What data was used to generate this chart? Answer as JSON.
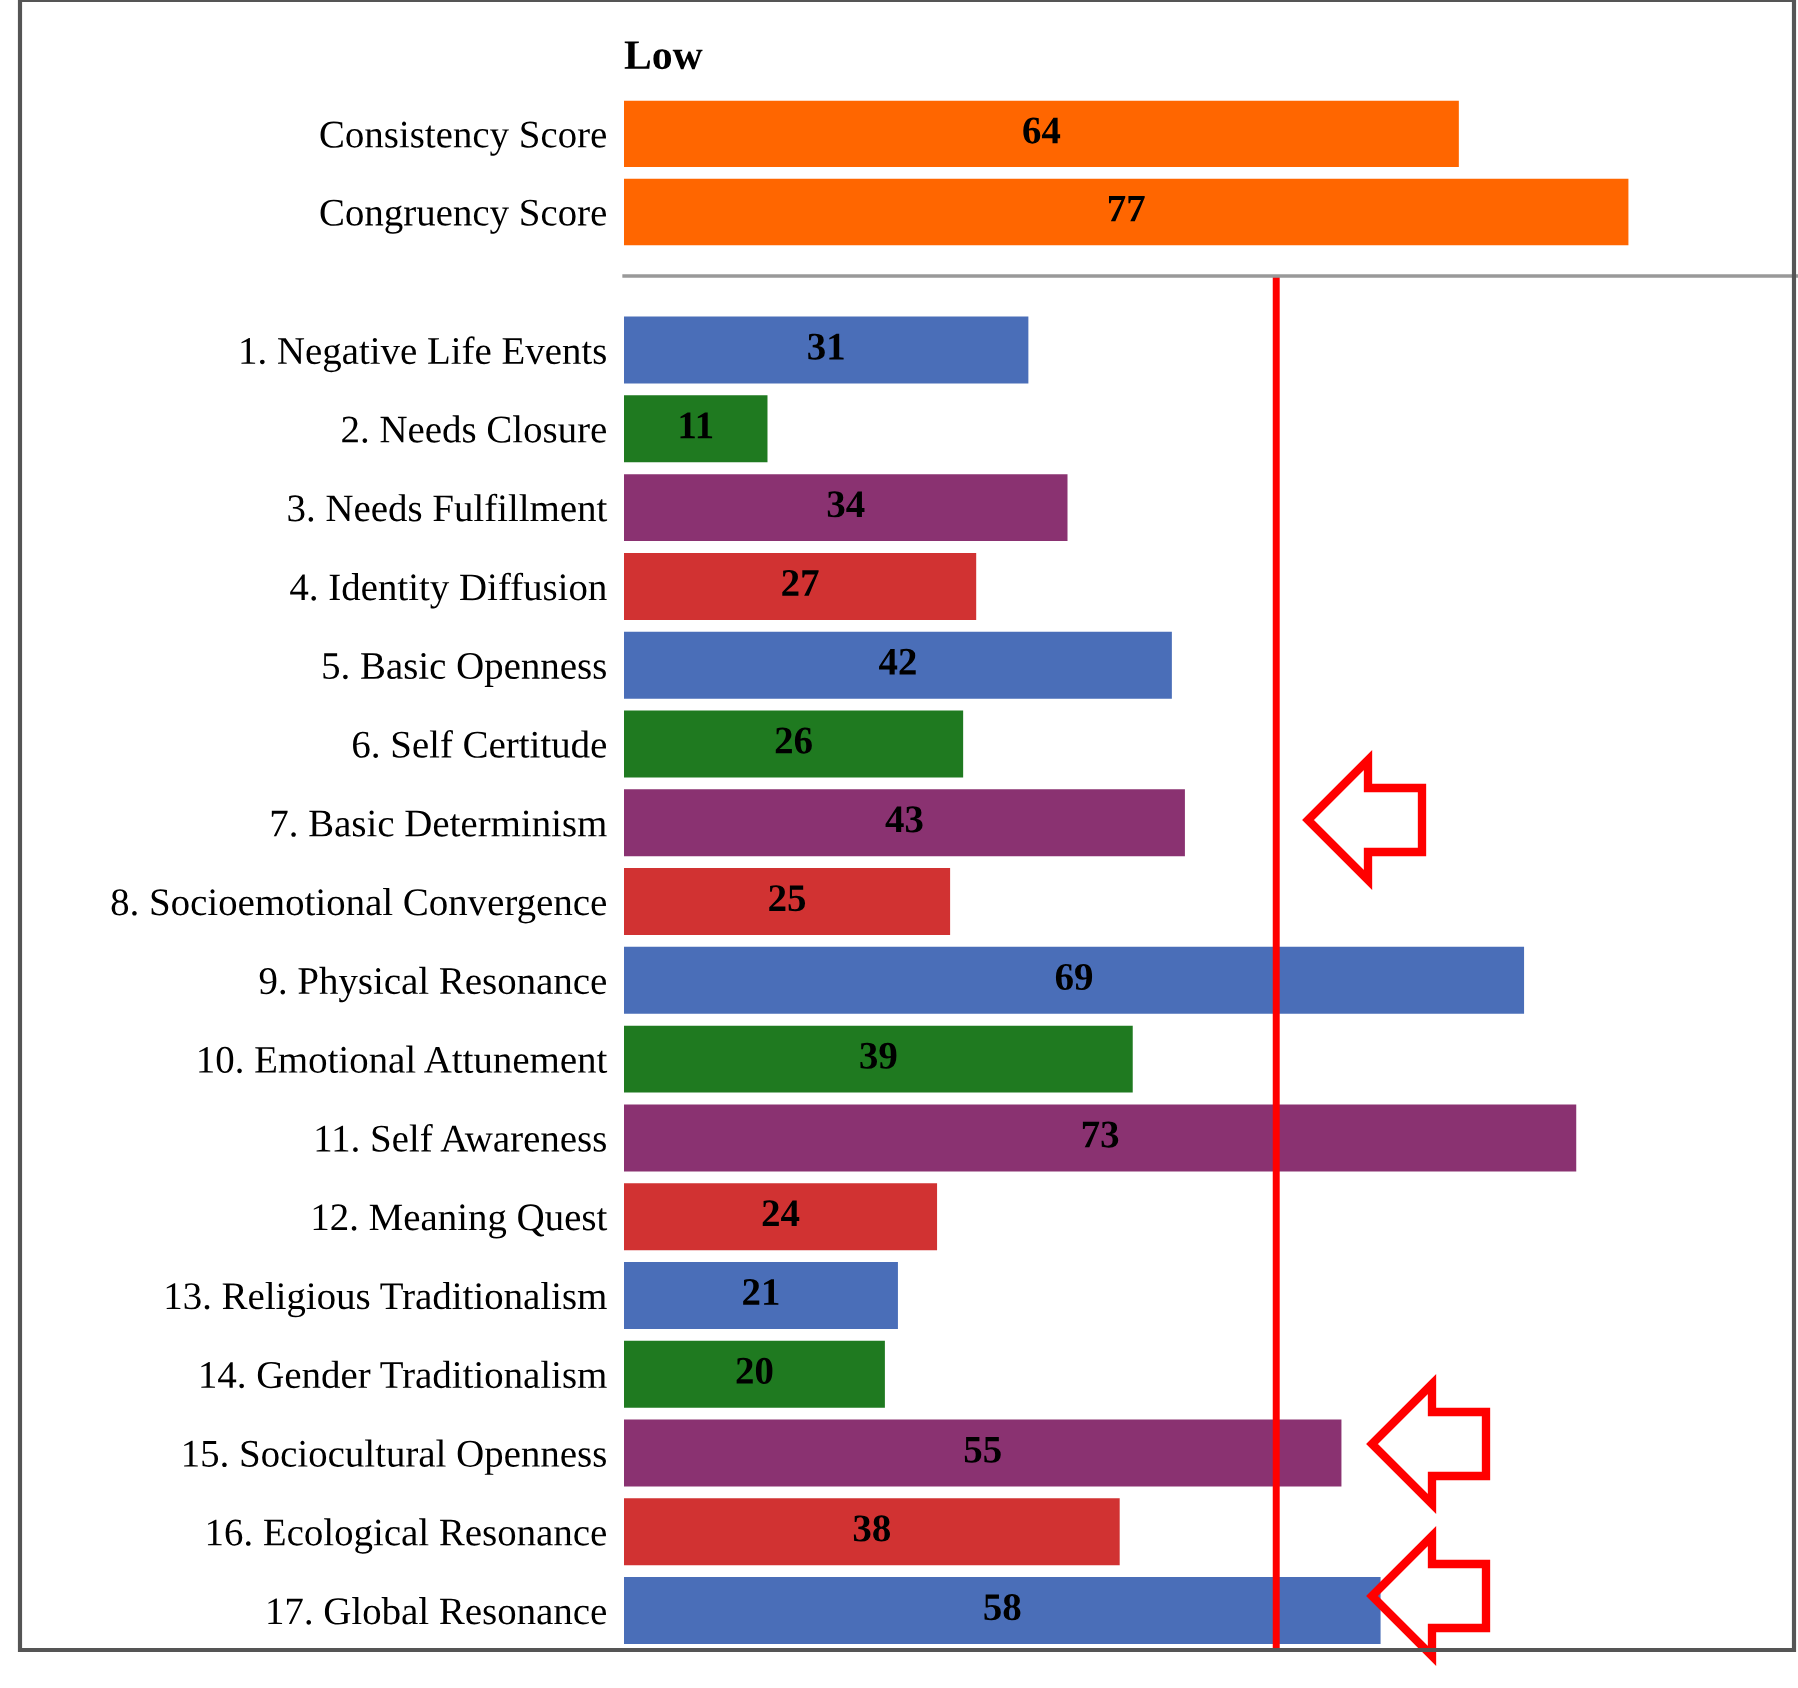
{
  "chart_data": [
    {
      "type": "bar",
      "orientation": "horizontal",
      "title": "Low",
      "categories": [
        "Consistency Score",
        "Congruency Score"
      ],
      "values": [
        64,
        77
      ],
      "colors": [
        "#ff6600",
        "#ff6600"
      ],
      "xlim": [
        0,
        90
      ],
      "tick_labels": "y",
      "data_labels": true,
      "grid": false,
      "legend": false
    },
    {
      "type": "bar",
      "orientation": "horizontal",
      "categories": [
        "1. Negative Life Events",
        "2. Needs Closure",
        "3. Needs Fulfillment",
        "4. Identity Diffusion",
        "5. Basic Openness",
        "6. Self Certitude",
        "7. Basic Determinism",
        "8. Socioemotional Convergence",
        "9. Physical Resonance",
        "10. Emotional Attunement",
        "11. Self Awareness",
        "12. Meaning Quest",
        "13. Religious Traditionalism",
        "14. Gender Traditionalism",
        "15. Sociocultural Openness",
        "16. Ecological Resonance",
        "17. Global Resonance"
      ],
      "values": [
        31,
        11,
        34,
        27,
        42,
        26,
        43,
        25,
        69,
        39,
        73,
        24,
        21,
        20,
        55,
        38,
        58
      ],
      "colors": [
        "#4a6eb8",
        "#1f7a20",
        "#8a3271",
        "#d13232",
        "#4a6eb8",
        "#1f7a20",
        "#8a3271",
        "#d13232",
        "#4a6eb8",
        "#1f7a20",
        "#8a3271",
        "#d13232",
        "#4a6eb8",
        "#1f7a20",
        "#8a3271",
        "#d13232",
        "#4a6eb8"
      ],
      "xlim": [
        0,
        90
      ],
      "tick_labels": "y",
      "data_labels": true,
      "grid": false,
      "legend": false,
      "ref_lines": [
        {
          "axis": "x",
          "value": 50,
          "color": "#ff0000",
          "line_style": "solid"
        }
      ]
    }
  ]
}
